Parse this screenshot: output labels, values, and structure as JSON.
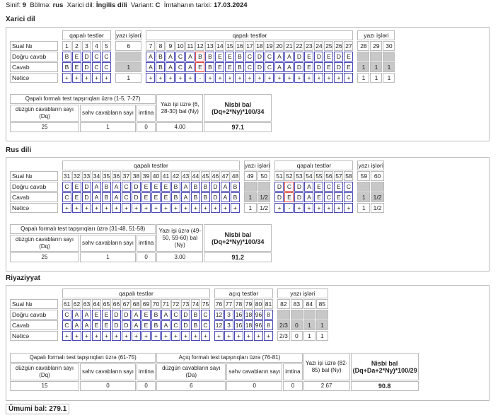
{
  "header": {
    "sinif_label": "Sinif:",
    "sinif": "9",
    "bolme_label": "Bölmə:",
    "bolme": "rus",
    "xarici_label": "Xarici dil:",
    "xarici": "İngilis dili",
    "variant_label": "Variant:",
    "variant": "C",
    "tarix_label": "İmtahanın tarixi:",
    "tarix": "17.03.2024"
  },
  "row_labels": {
    "q": "Sual №",
    "correct": "Doğru cavab",
    "answer": "Cavab",
    "result": "Nəticə"
  },
  "sections": [
    {
      "title": "Xarici dil",
      "groups": [
        {
          "head": "qapalı testlər",
          "kind": "mc",
          "nums": [
            "1",
            "2",
            "3",
            "4",
            "5"
          ],
          "correct": [
            "B",
            "E",
            "D",
            "C",
            "C"
          ],
          "answer": [
            "B",
            "E",
            "D",
            "C",
            "C"
          ],
          "result": [
            "+",
            "+",
            "+",
            "+",
            "+"
          ],
          "wrong": []
        },
        {
          "head": "yazı işləri",
          "kind": "written",
          "nums": [
            "6"
          ],
          "answer": [
            "1"
          ],
          "result": [
            "1"
          ]
        },
        {
          "head": "qapalı testlər",
          "kind": "mc",
          "nums": [
            "7",
            "8",
            "9",
            "10",
            "11",
            "12",
            "13",
            "14",
            "15",
            "16",
            "17",
            "18",
            "19",
            "20",
            "21",
            "22",
            "23",
            "24",
            "25",
            "26",
            "27"
          ],
          "correct": [
            "A",
            "B",
            "A",
            "C",
            "A",
            "B",
            "B",
            "E",
            "E",
            "B",
            "C",
            "D",
            "C",
            "A",
            "A",
            "D",
            "E",
            "D",
            "E",
            "D",
            "E"
          ],
          "answer": [
            "A",
            "B",
            "A",
            "C",
            "A",
            "E",
            "B",
            "E",
            "E",
            "B",
            "C",
            "D",
            "C",
            "A",
            "A",
            "D",
            "E",
            "D",
            "E",
            "D",
            "E"
          ],
          "result": [
            "+",
            "+",
            "+",
            "+",
            "+",
            "-",
            "+",
            "+",
            "+",
            "+",
            "+",
            "+",
            "+",
            "+",
            "+",
            "+",
            "+",
            "+",
            "+",
            "+",
            "+"
          ],
          "wrong": [
            5
          ]
        },
        {
          "head": "yazı işləri",
          "kind": "written",
          "nums": [
            "28",
            "29",
            "30"
          ],
          "answer": [
            "1",
            "1",
            "1"
          ],
          "result": [
            "1",
            "1",
            "1"
          ]
        }
      ],
      "summary": {
        "left_title": "Qapalı formalı test tapşırıqları üzrə (1-5, 7-27)",
        "cols": [
          "düzgün cavabların sayı (Dq)",
          "səhv cavabların sayı",
          "imtina"
        ],
        "vals": [
          "25",
          "1",
          "0"
        ],
        "written_title": "Yazı işi üzrə (6, 28-30) bal (Ny)",
        "written_val": "4.00",
        "score_title": "Nisbi bal (Dq+2*Ny)*100/34",
        "score_val": "97.1"
      }
    },
    {
      "title": "Rus dili",
      "groups": [
        {
          "head": "qapalı testlər",
          "kind": "mc",
          "nums": [
            "31",
            "32",
            "33",
            "34",
            "35",
            "36",
            "37",
            "38",
            "39",
            "40",
            "41",
            "42",
            "43",
            "44",
            "45",
            "46",
            "47",
            "48"
          ],
          "correct": [
            "C",
            "E",
            "D",
            "A",
            "B",
            "A",
            "C",
            "D",
            "E",
            "E",
            "E",
            "B",
            "A",
            "B",
            "B",
            "D",
            "A",
            "B"
          ],
          "answer": [
            "C",
            "E",
            "D",
            "A",
            "B",
            "A",
            "C",
            "D",
            "E",
            "E",
            "E",
            "B",
            "A",
            "B",
            "B",
            "D",
            "A",
            "B"
          ],
          "result": [
            "+",
            "+",
            "+",
            "+",
            "+",
            "+",
            "+",
            "+",
            "+",
            "+",
            "+",
            "+",
            "+",
            "+",
            "+",
            "+",
            "+",
            "+"
          ],
          "wrong": []
        },
        {
          "head": "yazı işləri",
          "kind": "written",
          "nums": [
            "49",
            "50"
          ],
          "answer": [
            "1",
            "1/2"
          ],
          "result": [
            "1",
            "1/2"
          ]
        },
        {
          "head": "qapalı testlər",
          "kind": "mc",
          "nums": [
            "51",
            "52",
            "53",
            "54",
            "55",
            "56",
            "57",
            "58"
          ],
          "correct": [
            "D",
            "C",
            "D",
            "A",
            "E",
            "C",
            "E",
            "C"
          ],
          "answer": [
            "D",
            "E",
            "D",
            "A",
            "E",
            "C",
            "E",
            "C"
          ],
          "result": [
            "+",
            "-",
            "+",
            "+",
            "+",
            "+",
            "+",
            "+"
          ],
          "wrong": [
            1
          ]
        },
        {
          "head": "yazı işləri",
          "kind": "written",
          "nums": [
            "59",
            "60"
          ],
          "answer": [
            "1",
            "1/2"
          ],
          "result": [
            "1",
            "1/2"
          ]
        }
      ],
      "summary": {
        "left_title": "Qapalı formalı test tapşırıqları üzrə (31-48, 51-58)",
        "cols": [
          "düzgün cavabların sayı (Dq)",
          "səhv cavabların sayı",
          "imtina"
        ],
        "vals": [
          "25",
          "1",
          "0"
        ],
        "written_title": "Yazı işi üzrə (49-50, 59-60) bal (Ny)",
        "written_val": "3.00",
        "score_title": "Nisbi bal (Dq+2*Ny)*100/34",
        "score_val": "91.2"
      }
    },
    {
      "title": "Riyaziyyat",
      "groups": [
        {
          "head": "qapalı testlər",
          "kind": "mc",
          "nums": [
            "61",
            "62",
            "63",
            "64",
            "65",
            "66",
            "67",
            "68",
            "69",
            "70",
            "71",
            "72",
            "73",
            "74",
            "75"
          ],
          "correct": [
            "C",
            "A",
            "A",
            "E",
            "E",
            "D",
            "D",
            "A",
            "E",
            "B",
            "A",
            "C",
            "D",
            "B",
            "C"
          ],
          "answer": [
            "C",
            "A",
            "A",
            "E",
            "E",
            "D",
            "D",
            "A",
            "E",
            "B",
            "A",
            "C",
            "D",
            "B",
            "C"
          ],
          "result": [
            "+",
            "+",
            "+",
            "+",
            "+",
            "+",
            "+",
            "+",
            "+",
            "+",
            "+",
            "+",
            "+",
            "+",
            "+"
          ],
          "wrong": []
        },
        {
          "head": "açıq testlər",
          "kind": "mc",
          "nums": [
            "76",
            "77",
            "78",
            "79",
            "80",
            "81"
          ],
          "correct": [
            "12",
            "3",
            "16",
            "18",
            "96",
            "8"
          ],
          "answer": [
            "12",
            "3",
            "16",
            "18",
            "96",
            "8"
          ],
          "result": [
            "+",
            "+",
            "+",
            "+",
            "+",
            "+"
          ],
          "wrong": []
        },
        {
          "head": "yazı işləri",
          "kind": "written",
          "nums": [
            "82",
            "83",
            "84",
            "85"
          ],
          "answer": [
            "2/3",
            "0",
            "1",
            "1"
          ],
          "result": [
            "2/3",
            "0",
            "1",
            "1"
          ]
        }
      ],
      "summary": {
        "left_title": "Qapalı formalı test tapşırıqları üzrə (61-75)",
        "cols": [
          "düzgün cavabların sayı (Dq)",
          "səhv cavabların sayı",
          "imtina"
        ],
        "vals": [
          "15",
          "0",
          "0"
        ],
        "open_title": "Açıq formalı test tapşırıqları üzrə (76-81)",
        "open_cols": [
          "düzgün cavabların sayı (Da)",
          "səhv cavabların sayı",
          "imtina"
        ],
        "open_vals": [
          "6",
          "0",
          "0"
        ],
        "written_title": "Yazı işi üzrə (82-85) bal (Ny)",
        "written_val": "2.67",
        "score_title": "Nisbi bal (Dq+Da+2*Ny)*100/29",
        "score_val": "90.8"
      }
    }
  ],
  "total": "Ümumi bal: 279.1"
}
